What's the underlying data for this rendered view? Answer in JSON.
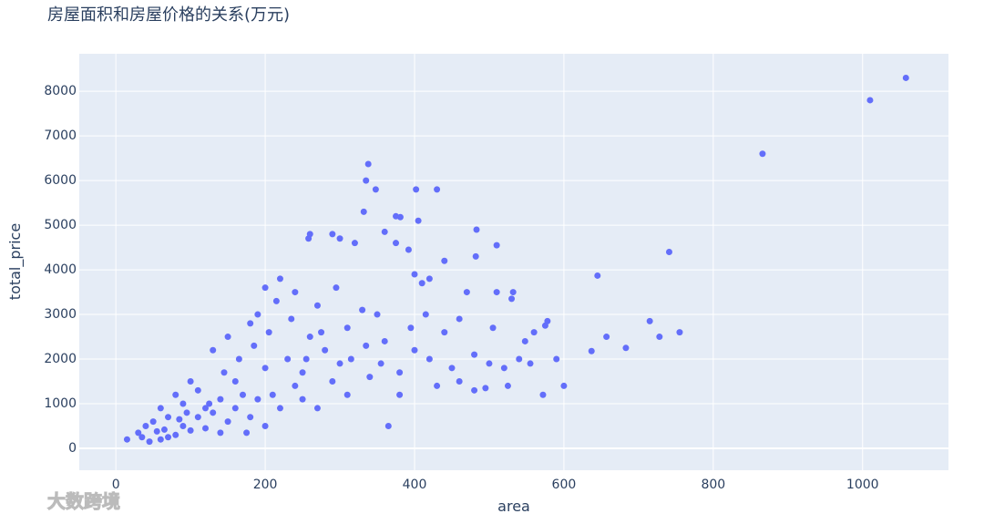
{
  "chart_data": {
    "type": "scatter",
    "title": "房屋面积和房屋价格的关系(万元)",
    "x_label": "area",
    "y_label": "total_price",
    "watermark": "大数跨境",
    "color": "#636efa",
    "grid": true,
    "xlim": [
      -49,
      1115
    ],
    "ylim": [
      -490,
      8840
    ],
    "xticks": [
      0,
      200,
      400,
      600,
      800,
      1000
    ],
    "yticks": [
      0,
      1000,
      2000,
      3000,
      4000,
      5000,
      6000,
      7000,
      8000
    ],
    "x": [
      1058,
      1010,
      866,
      741,
      645,
      755,
      715,
      728,
      683,
      657,
      637,
      600,
      572,
      578,
      575,
      560,
      548,
      532,
      510,
      483,
      482,
      430,
      402,
      338,
      335,
      348,
      375,
      405,
      381,
      360,
      332,
      260,
      258,
      290,
      300,
      320,
      375,
      392,
      440,
      420,
      470,
      510,
      530,
      505,
      525,
      495,
      480,
      430,
      380,
      365,
      300,
      250,
      220,
      200,
      190,
      240,
      270,
      150,
      130,
      180,
      100,
      80,
      60,
      40,
      15,
      30,
      50,
      70,
      90,
      110,
      120,
      140,
      160,
      170,
      200,
      210,
      230,
      260,
      280,
      310,
      330,
      350,
      360,
      400,
      420,
      450,
      460,
      380,
      340,
      290,
      250,
      220,
      180,
      150,
      120,
      100,
      80,
      60,
      45,
      70,
      90,
      130,
      110,
      160,
      190,
      240,
      270,
      310,
      200,
      175,
      140,
      85,
      55,
      35,
      65,
      95,
      125,
      145,
      165,
      185,
      205,
      215,
      235,
      255,
      275,
      295,
      315,
      335,
      355,
      395,
      415,
      440,
      400,
      410,
      460,
      480,
      500,
      520,
      540,
      555,
      590
    ],
    "values": [
      8300,
      7800,
      6600,
      4400,
      3870,
      2600,
      2850,
      2500,
      2250,
      2500,
      2180,
      1400,
      1200,
      2850,
      2750,
      2600,
      2400,
      3500,
      4550,
      4900,
      4300,
      5800,
      5800,
      6370,
      6000,
      5800,
      5200,
      5100,
      5180,
      4850,
      5300,
      4800,
      4700,
      4800,
      4700,
      4600,
      4600,
      4450,
      4200,
      3800,
      3500,
      3500,
      3350,
      2700,
      1400,
      1350,
      1300,
      1400,
      1200,
      500,
      1900,
      1700,
      3800,
      3600,
      3000,
      3500,
      3200,
      2500,
      2200,
      2800,
      1500,
      1200,
      900,
      500,
      200,
      350,
      600,
      700,
      1000,
      1300,
      900,
      1100,
      1500,
      1200,
      1800,
      1200,
      2000,
      2500,
      2200,
      2700,
      3100,
      3000,
      2400,
      2200,
      2000,
      1800,
      1500,
      1700,
      1600,
      1500,
      1100,
      900,
      700,
      600,
      450,
      400,
      300,
      200,
      150,
      250,
      500,
      800,
      700,
      900,
      1100,
      1400,
      900,
      1200,
      500,
      350,
      350,
      650,
      380,
      250,
      420,
      800,
      1000,
      1700,
      2000,
      2300,
      2600,
      3300,
      2900,
      2000,
      2600,
      3600,
      2000,
      2300,
      1900,
      2700,
      3000,
      2600,
      3900,
      3700,
      2900,
      2100,
      1900,
      1800,
      2000,
      1900,
      2000
    ]
  }
}
